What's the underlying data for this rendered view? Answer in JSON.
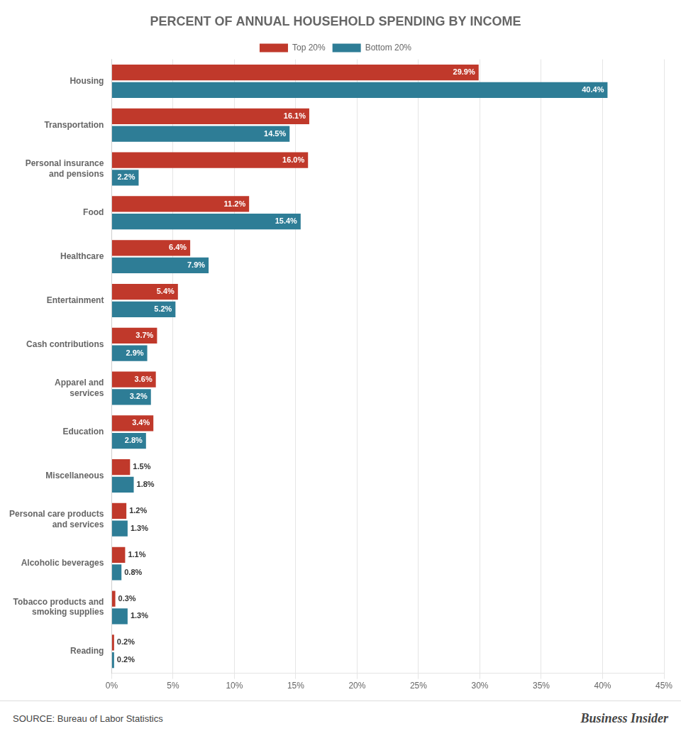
{
  "chart_data": {
    "type": "bar",
    "orientation": "horizontal",
    "title": "PERCENT OF ANNUAL HOUSEHOLD SPENDING BY INCOME",
    "categories": [
      "Housing",
      "Transportation",
      "Personal insurance\nand pensions",
      "Food",
      "Healthcare",
      "Entertainment",
      "Cash contributions",
      "Apparel and\nservices",
      "Education",
      "Miscellaneous",
      "Personal care products\nand services",
      "Alcoholic beverages",
      "Tobacco products and\nsmoking supplies",
      "Reading"
    ],
    "series": [
      {
        "name": "Top 20%",
        "color": "#c0392b",
        "values": [
          29.9,
          16.1,
          16.0,
          11.2,
          6.4,
          5.4,
          3.7,
          3.6,
          3.4,
          1.5,
          1.2,
          1.1,
          0.3,
          0.2
        ],
        "value_labels": [
          "29.9%",
          "16.1%",
          "16.0%",
          "11.2%",
          "6.4%",
          "5.4%",
          "3.7%",
          "3.6%",
          "3.4%",
          "1.5%",
          "1.2%",
          "1.1%",
          "0.3%",
          "0.2%"
        ]
      },
      {
        "name": "Bottom 20%",
        "color": "#2e7d96",
        "values": [
          40.4,
          14.5,
          2.2,
          15.4,
          7.9,
          5.2,
          2.9,
          3.2,
          2.8,
          1.8,
          1.3,
          0.8,
          1.3,
          0.2
        ],
        "value_labels": [
          "40.4%",
          "14.5%",
          "2.2%",
          "15.4%",
          "7.9%",
          "5.2%",
          "2.9%",
          "3.2%",
          "2.8%",
          "1.8%",
          "1.3%",
          "0.8%",
          "1.3%",
          "0.2%"
        ]
      }
    ],
    "xlim": [
      0,
      45
    ],
    "xticks": [
      {
        "value": 0,
        "label": "0%"
      },
      {
        "value": 5,
        "label": "5%"
      },
      {
        "value": 10,
        "label": "10%"
      },
      {
        "value": 15,
        "label": "15%"
      },
      {
        "value": 20,
        "label": "20%"
      },
      {
        "value": 25,
        "label": "25%"
      },
      {
        "value": 30,
        "label": "30%"
      },
      {
        "value": 35,
        "label": "35%"
      },
      {
        "value": 40,
        "label": "40%"
      },
      {
        "value": 45,
        "label": "45%"
      }
    ],
    "grid": true,
    "legend": "top",
    "data_labels": true,
    "annotations": [
      "SOURCE: Bureau of Labor Statistics",
      "Business Insider"
    ]
  }
}
